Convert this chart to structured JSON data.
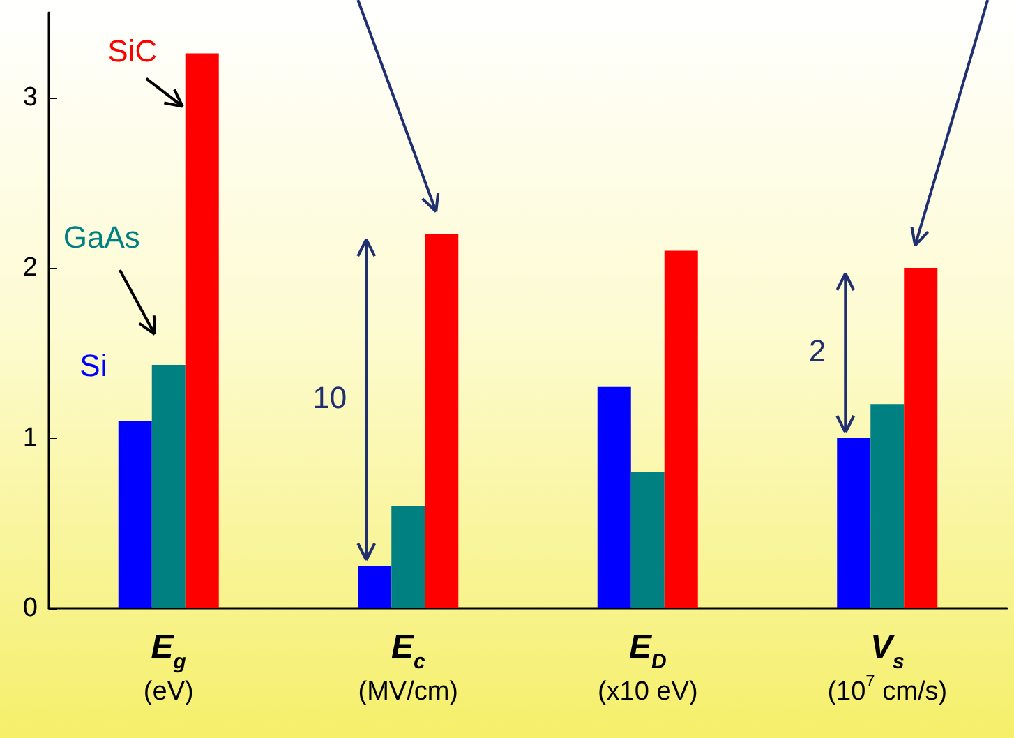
{
  "chart_data": {
    "type": "bar",
    "categories": [
      "E$_{g}$\n(eV)",
      "E$_{c}$\n(MV/cm)",
      "E$_{D}$\n(x10 eV)",
      "V$_{s}$\n(10$^{7}$ cm/s)"
    ],
    "series": [
      {
        "name": "Si",
        "color": "#0000ff",
        "values": [
          1.1,
          0.25,
          1.3,
          1.0
        ]
      },
      {
        "name": "GaAs",
        "color": "#008080",
        "values": [
          1.43,
          0.6,
          0.8,
          1.2
        ]
      },
      {
        "name": "SiC",
        "color": "#ff0000",
        "values": [
          3.26,
          2.2,
          2.1,
          2.0
        ]
      }
    ],
    "ylim": [
      0,
      3.5
    ],
    "yticks": [
      0,
      1,
      2,
      3
    ],
    "annotations": [
      "10",
      "2"
    ]
  }
}
